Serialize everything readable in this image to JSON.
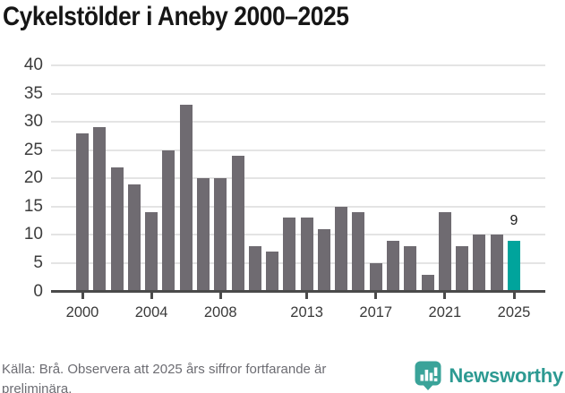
{
  "title": "Cykelstölder i Aneby 2000–2025",
  "chart_data": {
    "type": "bar",
    "title": "Cykelstölder i Aneby 2000–2025",
    "categories": [
      2000,
      2001,
      2002,
      2003,
      2004,
      2005,
      2006,
      2007,
      2008,
      2009,
      2010,
      2011,
      2012,
      2013,
      2014,
      2015,
      2016,
      2017,
      2018,
      2019,
      2020,
      2021,
      2022,
      2023,
      2024,
      2025
    ],
    "values": [
      28,
      29,
      22,
      19,
      14,
      25,
      33,
      20,
      20,
      24,
      8,
      7,
      13,
      13,
      11,
      15,
      14,
      5,
      9,
      8,
      3,
      14,
      8,
      10,
      10,
      9
    ],
    "highlight_category": 2025,
    "highlight_value_label": "9",
    "bar_color": "#6f6b71",
    "highlight_color": "#00a49c",
    "ylim": [
      0,
      40
    ],
    "ytick_step": 5,
    "yticks": [
      0,
      5,
      10,
      15,
      20,
      25,
      30,
      35,
      40
    ],
    "xticks": [
      2000,
      2004,
      2008,
      2013,
      2017,
      2021,
      2025
    ],
    "grid": "horizontal",
    "legend": "none",
    "axis_color": "#4a4a4a",
    "gridline_color": "#e4e4e4"
  },
  "footer": {
    "source": "Källa: Brå. Observera att 2025 års siffror fortfarande är preliminära.",
    "brand": "Newsworthy",
    "brand_color": "#2d9a92",
    "brand_icon": "newsworthy-speech-bubble-bar-chart"
  }
}
